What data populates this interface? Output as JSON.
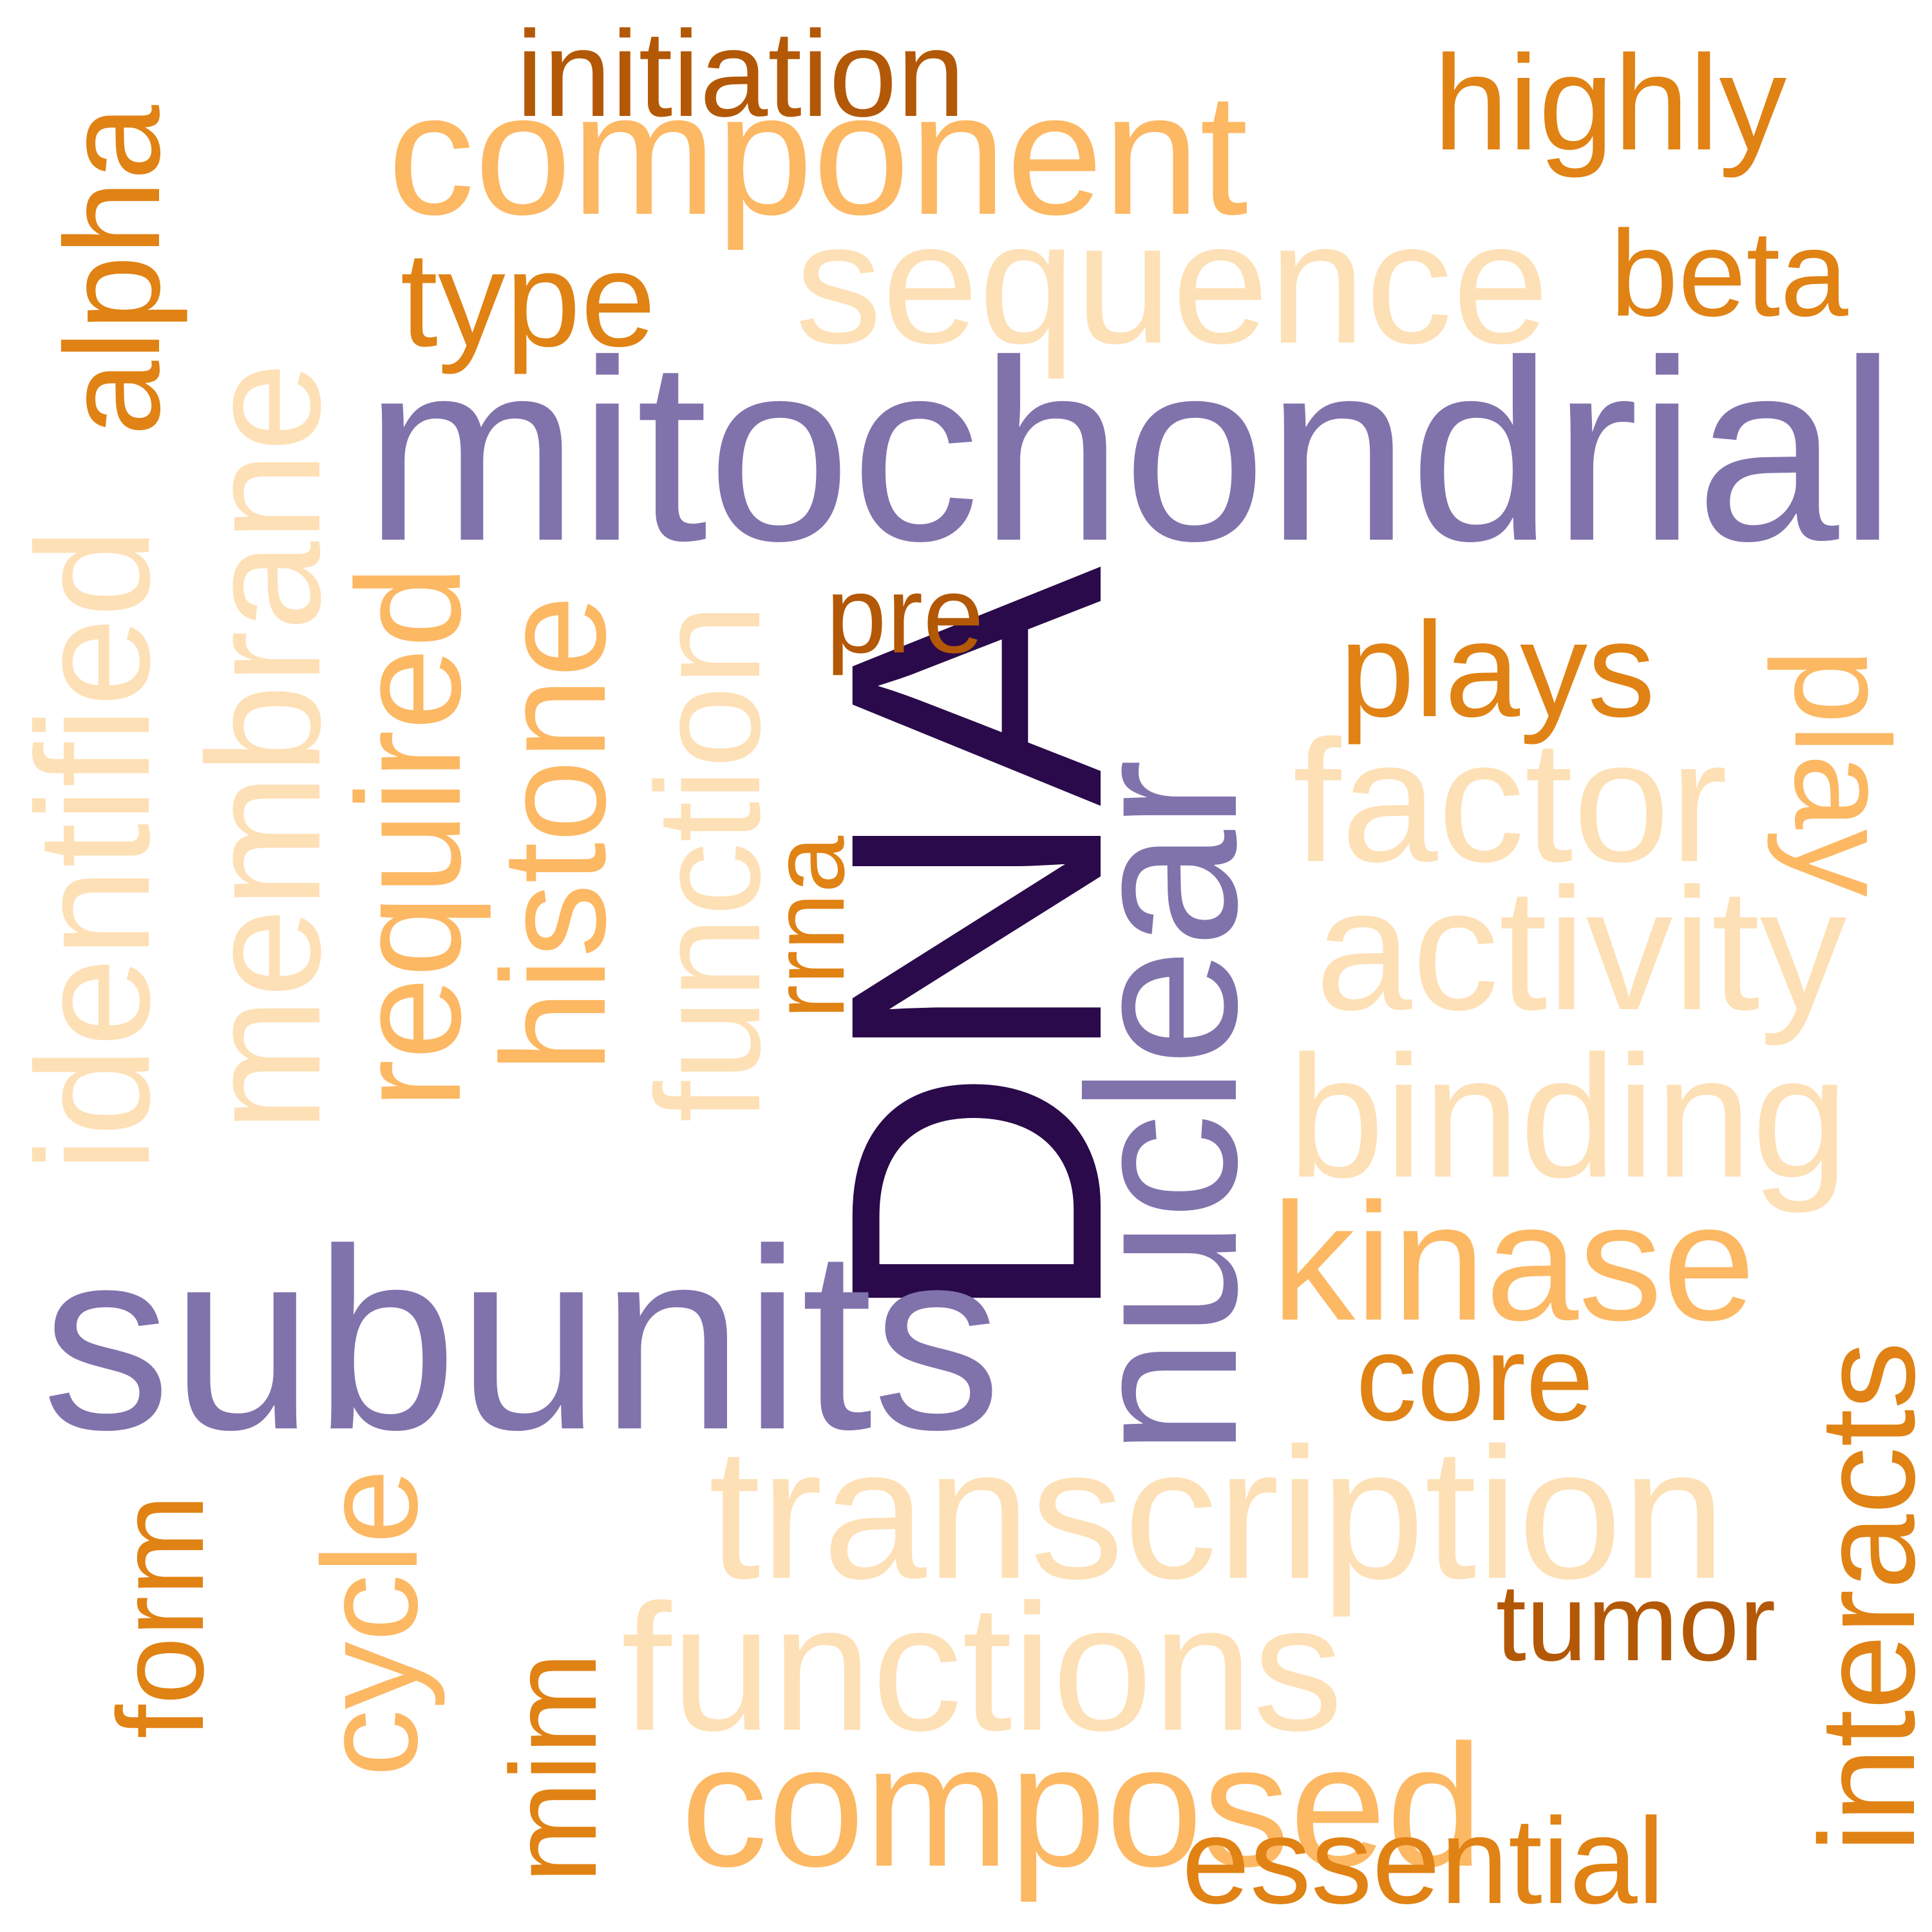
{
  "palette": {
    "darkest": "#2a0a4a",
    "purple": "#8073ac",
    "dark_orange": "#b35806",
    "orange": "#e08214",
    "light_orange": "#fdb863",
    "pale": "#fee0b6"
  },
  "words": [
    {
      "id": "dna",
      "text": "DNA",
      "color": "darkest"
    },
    {
      "id": "mitochondrial",
      "text": "mitochondrial",
      "color": "purple"
    },
    {
      "id": "subunits",
      "text": "subunits",
      "color": "purple"
    },
    {
      "id": "nuclear",
      "text": "nuclear",
      "color": "purple"
    },
    {
      "id": "transcription",
      "text": "transcription",
      "color": "pale"
    },
    {
      "id": "functions",
      "text": "functions",
      "color": "pale"
    },
    {
      "id": "sequence",
      "text": "sequence",
      "color": "pale"
    },
    {
      "id": "component",
      "text": "component",
      "color": "light_orange"
    },
    {
      "id": "composed",
      "text": "composed",
      "color": "light_orange"
    },
    {
      "id": "binding",
      "text": "binding",
      "color": "pale"
    },
    {
      "id": "activity",
      "text": "activity",
      "color": "pale"
    },
    {
      "id": "factor",
      "text": "factor",
      "color": "pale"
    },
    {
      "id": "kinase",
      "text": "kinase",
      "color": "light_orange"
    },
    {
      "id": "identified",
      "text": "identified",
      "color": "pale"
    },
    {
      "id": "membrane",
      "text": "membrane",
      "color": "pale"
    },
    {
      "id": "function",
      "text": "function",
      "color": "pale"
    },
    {
      "id": "histone",
      "text": "histone",
      "color": "light_orange"
    },
    {
      "id": "required",
      "text": "required",
      "color": "light_orange"
    },
    {
      "id": "alpha",
      "text": "alpha",
      "color": "orange"
    },
    {
      "id": "initiation",
      "text": "initiation",
      "color": "dark_orange"
    },
    {
      "id": "highly",
      "text": "highly",
      "color": "orange"
    },
    {
      "id": "type",
      "text": "type",
      "color": "orange"
    },
    {
      "id": "beta",
      "text": "beta",
      "color": "orange"
    },
    {
      "id": "pre",
      "text": "pre",
      "color": "dark_orange"
    },
    {
      "id": "plays",
      "text": "plays",
      "color": "orange"
    },
    {
      "id": "play",
      "text": "play",
      "color": "light_orange"
    },
    {
      "id": "rrna",
      "text": "rrna",
      "color": "orange"
    },
    {
      "id": "core",
      "text": "core",
      "color": "orange"
    },
    {
      "id": "tumor",
      "text": "tumor",
      "color": "dark_orange"
    },
    {
      "id": "interacts",
      "text": "interacts",
      "color": "orange"
    },
    {
      "id": "essential",
      "text": "essential",
      "color": "orange"
    },
    {
      "id": "form",
      "text": "form",
      "color": "orange"
    },
    {
      "id": "cycle",
      "text": "cycle",
      "color": "light_orange"
    },
    {
      "id": "mim",
      "text": "mim",
      "color": "orange"
    }
  ]
}
